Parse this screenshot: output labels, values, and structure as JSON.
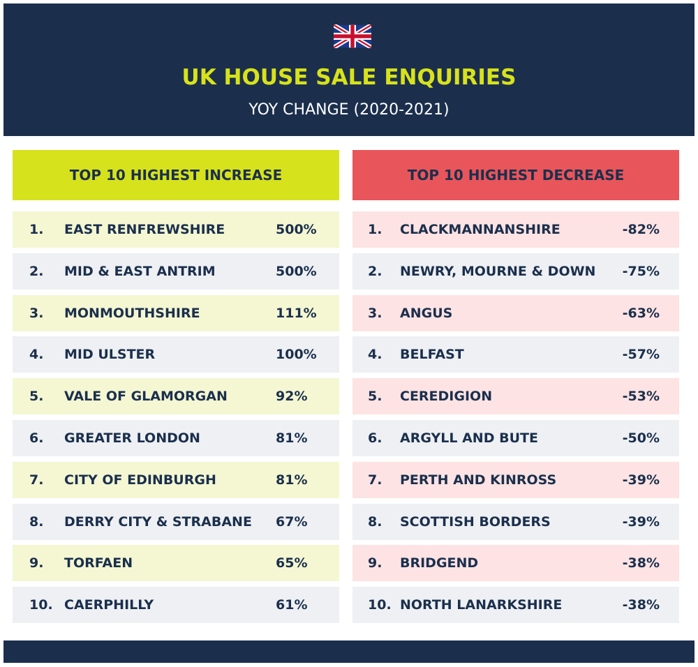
{
  "header": {
    "title": "UK HOUSE SALE ENQUIRIES",
    "subtitle": "YOY CHANGE (2020-2021)"
  },
  "increase": {
    "heading": "TOP 10 HIGHEST INCREASE",
    "rows": [
      [
        "1.",
        "EAST RENFREWSHIRE",
        "500%"
      ],
      [
        "2.",
        "MID & EAST ANTRIM",
        "500%"
      ],
      [
        "3.",
        "MONMOUTHSHIRE",
        "111%"
      ],
      [
        "4.",
        "MID ULSTER",
        "100%"
      ],
      [
        "5.",
        "VALE OF GLAMORGAN",
        "92%"
      ],
      [
        "6.",
        "GREATER LONDON",
        "81%"
      ],
      [
        "7.",
        "CITY OF EDINBURGH",
        "81%"
      ],
      [
        "8.",
        "DERRY CITY & STRABANE",
        "67%"
      ],
      [
        "9.",
        "TORFAEN",
        "65%"
      ],
      [
        "10.",
        "CAERPHILLY",
        "61%"
      ]
    ]
  },
  "decrease": {
    "heading": "TOP 10 HIGHEST DECREASE",
    "rows": [
      [
        "1.",
        "CLACKMANNANSHIRE",
        "-82%"
      ],
      [
        "2.",
        "NEWRY, MOURNE & DOWN",
        "-75%"
      ],
      [
        "3.",
        "ANGUS",
        "-63%"
      ],
      [
        "4.",
        "BELFAST",
        "-57%"
      ],
      [
        "5.",
        "CEREDIGION",
        "-53%"
      ],
      [
        "6.",
        "ARGYLL AND BUTE",
        "-50%"
      ],
      [
        "7.",
        "PERTH AND KINROSS",
        "-39%"
      ],
      [
        "8.",
        "SCOTTISH BORDERS",
        "-39%"
      ],
      [
        "9.",
        "BRIDGEND",
        "-38%"
      ],
      [
        "10.",
        "NORTH LANARKSHIRE",
        "-38%"
      ]
    ]
  }
}
